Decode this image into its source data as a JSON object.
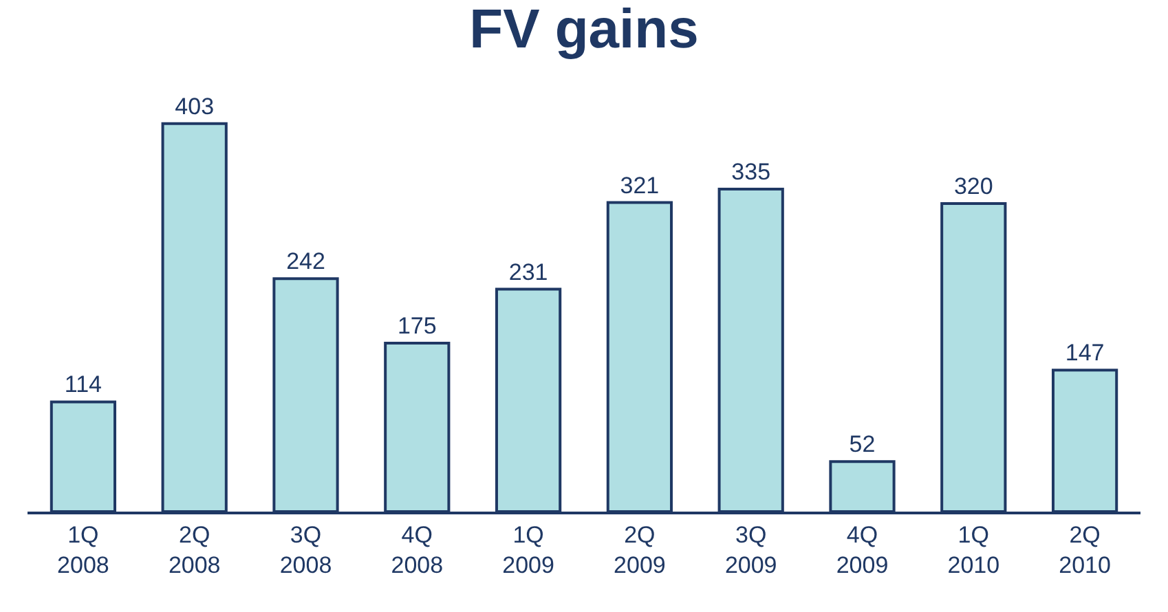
{
  "chart_data": {
    "type": "bar",
    "title": "FV gains",
    "categories": [
      "1Q 2008",
      "2Q 2008",
      "3Q 2008",
      "4Q 2008",
      "1Q 2009",
      "2Q 2009",
      "3Q 2009",
      "4Q 2009",
      "1Q 2010",
      "2Q 2010"
    ],
    "values": [
      114,
      403,
      242,
      175,
      231,
      321,
      335,
      52,
      320,
      147
    ],
    "color": "#b0dfe3",
    "data_labels": true,
    "grid": false,
    "legend": false
  }
}
